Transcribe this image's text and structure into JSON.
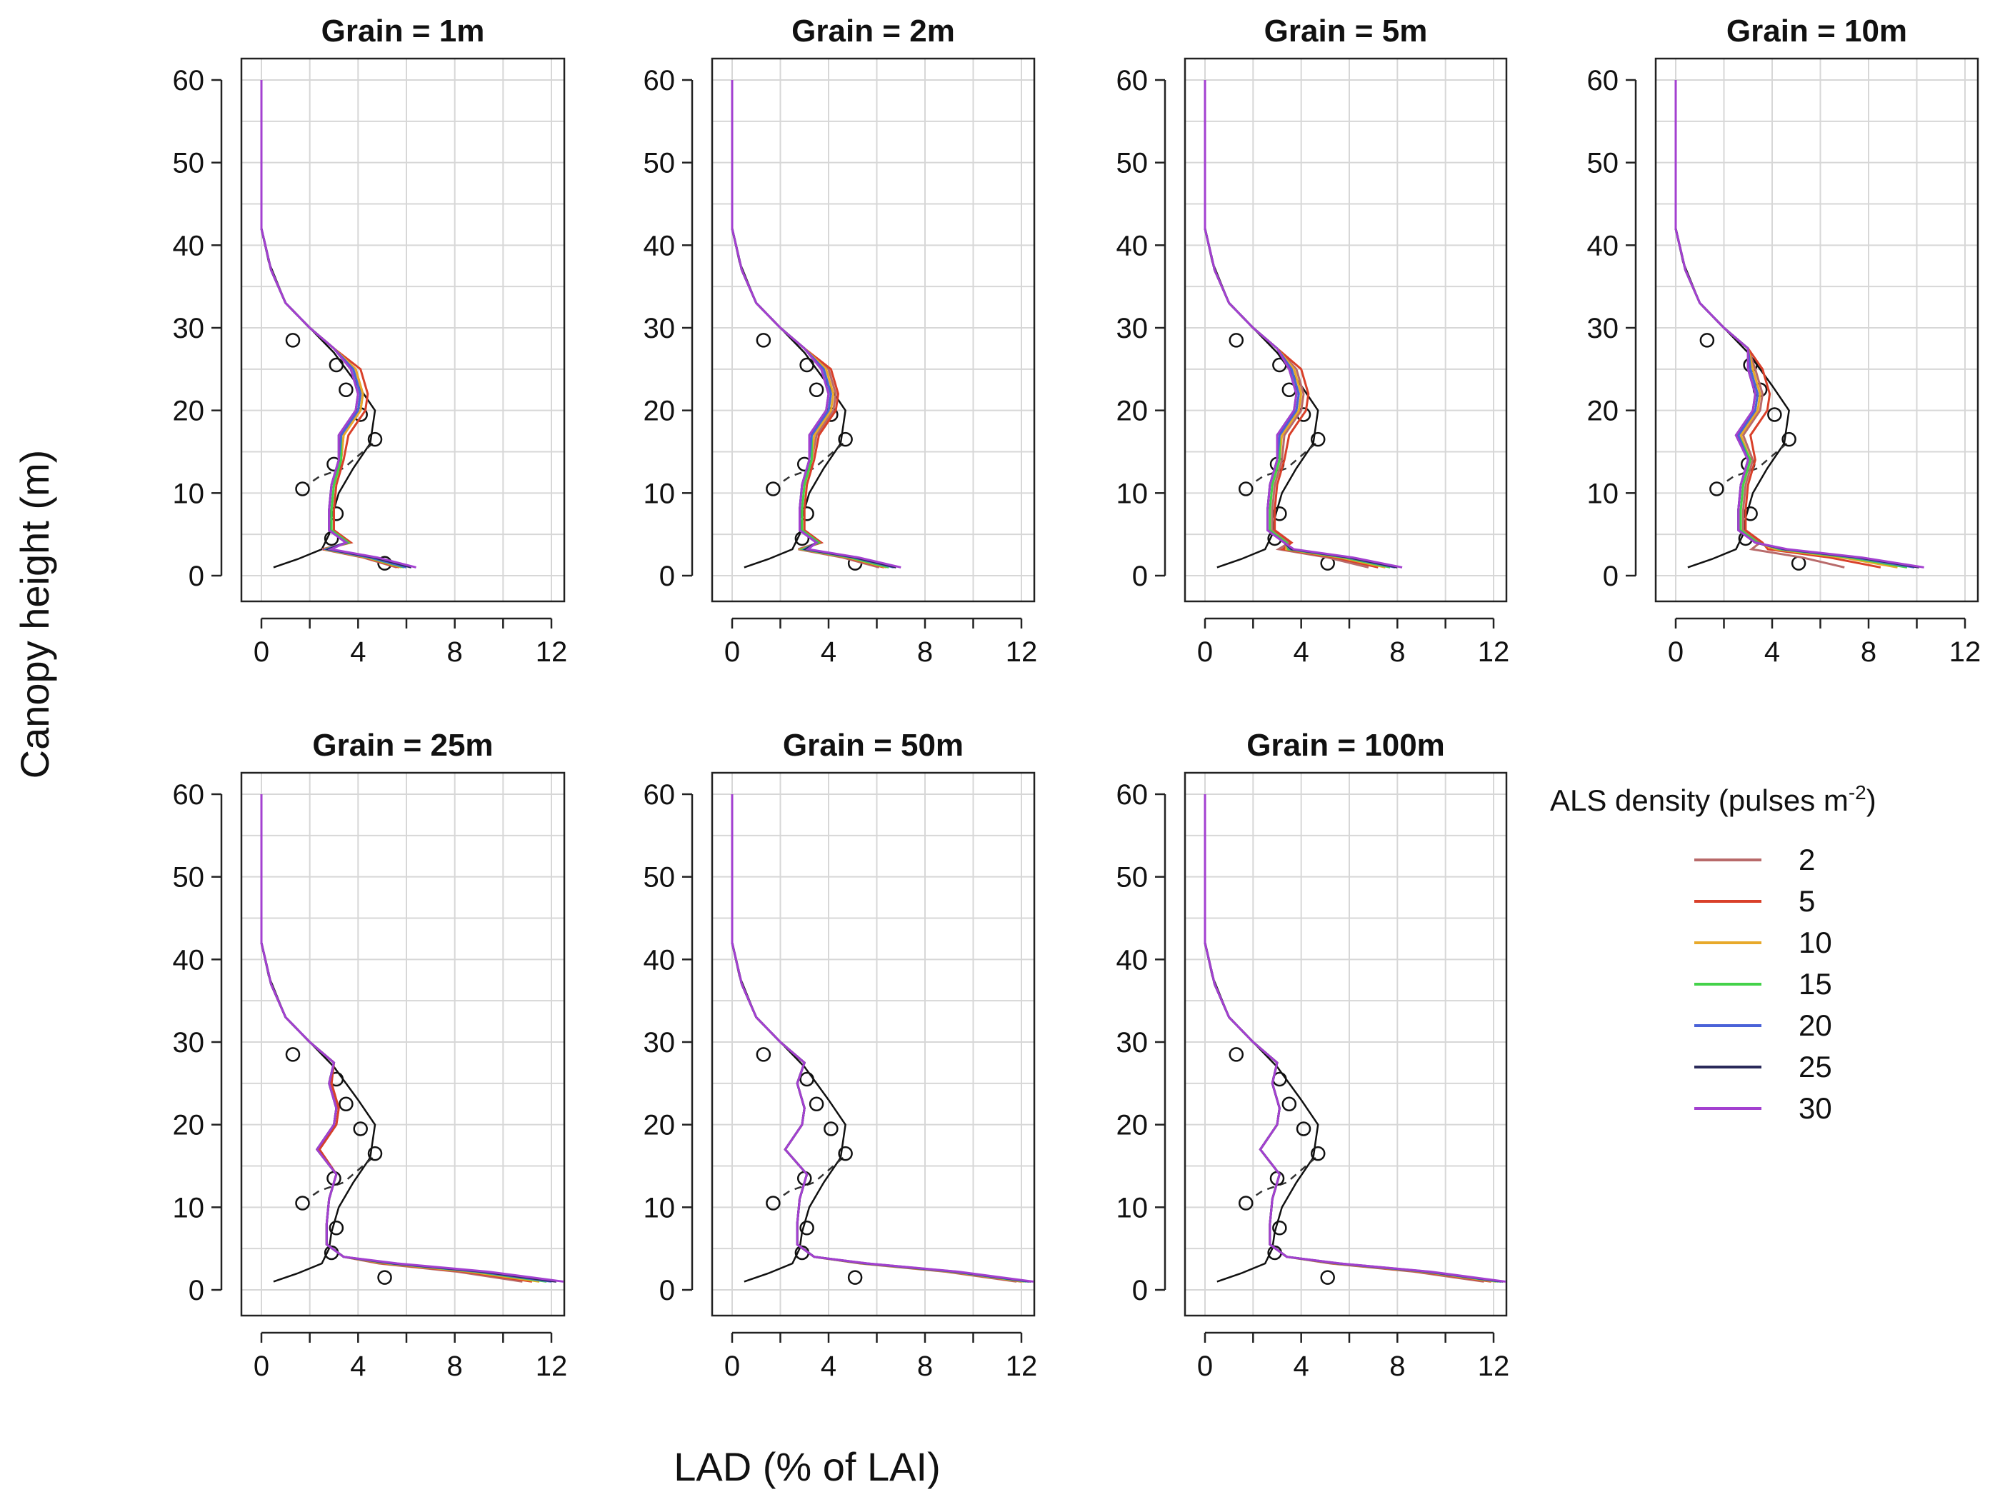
{
  "figure": {
    "ylabel": "Canopy height (m)",
    "xlabel": "LAD (% of LAI)"
  },
  "legend": {
    "title": "ALS density (pulses m",
    "title_sup": "-2",
    "title_end": ")",
    "items": [
      {
        "label": "2",
        "color": "#b86a6a"
      },
      {
        "label": "5",
        "color": "#d9402a"
      },
      {
        "label": "10",
        "color": "#e8a92a"
      },
      {
        "label": "15",
        "color": "#44d24a"
      },
      {
        "label": "20",
        "color": "#4a62d8"
      },
      {
        "label": "25",
        "color": "#2a2a5a"
      },
      {
        "label": "30",
        "color": "#a340d0"
      }
    ]
  },
  "chart_data": [
    {
      "type": "line",
      "title": "Grain = 1m",
      "xlim": [
        0,
        12
      ],
      "ylim": [
        0,
        60
      ],
      "xticks": [
        "0",
        "4",
        "8",
        "12"
      ],
      "yticks": [
        "0",
        "10",
        "20",
        "30",
        "40",
        "50",
        "60"
      ],
      "grid": true,
      "reference_line_solid": [
        [
          0,
          60
        ],
        [
          0,
          42
        ],
        [
          0.3,
          38
        ],
        [
          1,
          33
        ],
        [
          2,
          30
        ],
        [
          3,
          27
        ],
        [
          4,
          23
        ],
        [
          4.7,
          20
        ],
        [
          4.5,
          16
        ],
        [
          3.8,
          13
        ],
        [
          3.2,
          10
        ],
        [
          2.9,
          7
        ],
        [
          2.8,
          5
        ],
        [
          2.5,
          3.2
        ],
        [
          1.5,
          2
        ],
        [
          0.5,
          1
        ]
      ],
      "reference_line_dashed": [
        [
          4.6,
          16
        ],
        [
          3.4,
          13
        ],
        [
          2.4,
          12
        ],
        [
          1.9,
          11
        ]
      ],
      "reference_points": [
        [
          1.3,
          28.5
        ],
        [
          3.1,
          25.5
        ],
        [
          3.5,
          22.5
        ],
        [
          4.1,
          19.5
        ],
        [
          4.7,
          16.5
        ],
        [
          3.0,
          13.5
        ],
        [
          1.7,
          10.5
        ],
        [
          3.1,
          7.5
        ],
        [
          2.9,
          4.5
        ],
        [
          5.1,
          1.5
        ]
      ],
      "tail_x": [
        5.6,
        5.7,
        5.8,
        5.9,
        6.0,
        6.2,
        6.4
      ],
      "series": [
        {
          "name": "2",
          "peak": 4.2,
          "mid": 3.0,
          "tail": 5.6
        },
        {
          "name": "5",
          "peak": 4.4,
          "mid": 3.1,
          "tail": 5.7
        },
        {
          "name": "10",
          "peak": 4.2,
          "mid": 3.0,
          "tail": 5.8
        },
        {
          "name": "15",
          "peak": 4.1,
          "mid": 3.0,
          "tail": 5.9
        },
        {
          "name": "20",
          "peak": 4.1,
          "mid": 2.9,
          "tail": 6.0
        },
        {
          "name": "25",
          "peak": 4.0,
          "mid": 2.9,
          "tail": 6.2
        },
        {
          "name": "30",
          "peak": 4.0,
          "mid": 2.9,
          "tail": 6.4
        }
      ]
    },
    {
      "type": "line",
      "title": "Grain = 2m",
      "xlim": [
        0,
        12
      ],
      "ylim": [
        0,
        60
      ],
      "xticks": [
        "0",
        "4",
        "8",
        "12"
      ],
      "yticks": [
        "0",
        "10",
        "20",
        "30",
        "40",
        "50",
        "60"
      ],
      "grid": true,
      "series": [
        {
          "name": "2",
          "peak": 4.3,
          "mid": 3.0,
          "tail": 6.1
        },
        {
          "name": "5",
          "peak": 4.4,
          "mid": 3.1,
          "tail": 6.3
        },
        {
          "name": "10",
          "peak": 4.2,
          "mid": 3.0,
          "tail": 6.4
        },
        {
          "name": "15",
          "peak": 4.1,
          "mid": 3.0,
          "tail": 6.5
        },
        {
          "name": "20",
          "peak": 4.1,
          "mid": 2.9,
          "tail": 6.7
        },
        {
          "name": "25",
          "peak": 4.0,
          "mid": 2.9,
          "tail": 6.8
        },
        {
          "name": "30",
          "peak": 4.0,
          "mid": 2.9,
          "tail": 7.0
        }
      ]
    },
    {
      "type": "line",
      "title": "Grain = 5m",
      "xlim": [
        0,
        12
      ],
      "ylim": [
        0,
        60
      ],
      "xticks": [
        "0",
        "4",
        "8",
        "12"
      ],
      "yticks": [
        "0",
        "10",
        "20",
        "30",
        "40",
        "50",
        "60"
      ],
      "grid": true,
      "series": [
        {
          "name": "2",
          "peak": 4.1,
          "mid": 2.9,
          "tail": 6.8
        },
        {
          "name": "5",
          "peak": 4.3,
          "mid": 3.0,
          "tail": 7.2
        },
        {
          "name": "10",
          "peak": 4.0,
          "mid": 2.8,
          "tail": 7.5
        },
        {
          "name": "15",
          "peak": 3.9,
          "mid": 2.8,
          "tail": 7.7
        },
        {
          "name": "20",
          "peak": 3.9,
          "mid": 2.7,
          "tail": 7.9
        },
        {
          "name": "25",
          "peak": 3.8,
          "mid": 2.7,
          "tail": 8.0
        },
        {
          "name": "30",
          "peak": 3.8,
          "mid": 2.7,
          "tail": 8.2
        }
      ]
    },
    {
      "type": "line",
      "title": "Grain = 10m",
      "xlim": [
        0,
        12
      ],
      "ylim": [
        0,
        60
      ],
      "xticks": [
        "0",
        "4",
        "8",
        "12"
      ],
      "yticks": [
        "0",
        "10",
        "20",
        "30",
        "40",
        "50",
        "60"
      ],
      "grid": true,
      "series": [
        {
          "name": "2",
          "peak": 3.6,
          "mid": 2.9,
          "tail": 7.0
        },
        {
          "name": "5",
          "peak": 3.9,
          "mid": 3.0,
          "tail": 8.5
        },
        {
          "name": "10",
          "peak": 3.5,
          "mid": 2.8,
          "tail": 9.2
        },
        {
          "name": "15",
          "peak": 3.4,
          "mid": 2.8,
          "tail": 9.6
        },
        {
          "name": "20",
          "peak": 3.4,
          "mid": 2.7,
          "tail": 9.9
        },
        {
          "name": "25",
          "peak": 3.3,
          "mid": 2.7,
          "tail": 10.1
        },
        {
          "name": "30",
          "peak": 3.3,
          "mid": 2.7,
          "tail": 10.3
        }
      ]
    },
    {
      "type": "line",
      "title": "Grain = 25m",
      "xlim": [
        0,
        12
      ],
      "ylim": [
        0,
        60
      ],
      "xticks": [
        "0",
        "4",
        "8",
        "12"
      ],
      "yticks": [
        "0",
        "10",
        "20",
        "30",
        "40",
        "50",
        "60"
      ],
      "grid": true,
      "series": [
        {
          "name": "2",
          "peak": 3.2,
          "mid": 2.8,
          "tail": 10.8
        },
        {
          "name": "5",
          "peak": 3.2,
          "mid": 2.8,
          "tail": 11.2
        },
        {
          "name": "10",
          "peak": 3.1,
          "mid": 2.8,
          "tail": 11.5
        },
        {
          "name": "15",
          "peak": 3.1,
          "mid": 2.8,
          "tail": 11.8
        },
        {
          "name": "20",
          "peak": 3.1,
          "mid": 2.8,
          "tail": 12.0
        },
        {
          "name": "25",
          "peak": 3.1,
          "mid": 2.8,
          "tail": 12.2
        },
        {
          "name": "30",
          "peak": 3.1,
          "mid": 2.8,
          "tail": 12.5
        }
      ]
    },
    {
      "type": "line",
      "title": "Grain = 50m",
      "xlim": [
        0,
        12
      ],
      "ylim": [
        0,
        60
      ],
      "xticks": [
        "0",
        "4",
        "8",
        "12"
      ],
      "yticks": [
        "0",
        "10",
        "20",
        "30",
        "40",
        "50",
        "60"
      ],
      "grid": true,
      "series": [
        {
          "name": "2",
          "peak": 3.0,
          "mid": 2.8,
          "tail": 11.8
        },
        {
          "name": "5",
          "peak": 3.0,
          "mid": 2.8,
          "tail": 12.0
        },
        {
          "name": "10",
          "peak": 3.0,
          "mid": 2.8,
          "tail": 12.1
        },
        {
          "name": "15",
          "peak": 3.0,
          "mid": 2.8,
          "tail": 12.2
        },
        {
          "name": "20",
          "peak": 3.0,
          "mid": 2.8,
          "tail": 12.3
        },
        {
          "name": "25",
          "peak": 3.0,
          "mid": 2.8,
          "tail": 12.4
        },
        {
          "name": "30",
          "peak": 3.0,
          "mid": 2.8,
          "tail": 12.5
        }
      ]
    },
    {
      "type": "line",
      "title": "Grain = 100m",
      "xlim": [
        0,
        12
      ],
      "ylim": [
        0,
        60
      ],
      "xticks": [
        "0",
        "4",
        "8",
        "12"
      ],
      "yticks": [
        "0",
        "10",
        "20",
        "30",
        "40",
        "50",
        "60"
      ],
      "grid": true,
      "series": [
        {
          "name": "2",
          "peak": 3.1,
          "mid": 2.8,
          "tail": 11.6
        },
        {
          "name": "5",
          "peak": 3.1,
          "mid": 2.8,
          "tail": 11.9
        },
        {
          "name": "10",
          "peak": 3.1,
          "mid": 2.8,
          "tail": 12.1
        },
        {
          "name": "15",
          "peak": 3.1,
          "mid": 2.8,
          "tail": 12.2
        },
        {
          "name": "20",
          "peak": 3.1,
          "mid": 2.8,
          "tail": 12.3
        },
        {
          "name": "25",
          "peak": 3.1,
          "mid": 2.8,
          "tail": 12.4
        },
        {
          "name": "30",
          "peak": 3.1,
          "mid": 2.8,
          "tail": 12.5
        }
      ]
    }
  ]
}
